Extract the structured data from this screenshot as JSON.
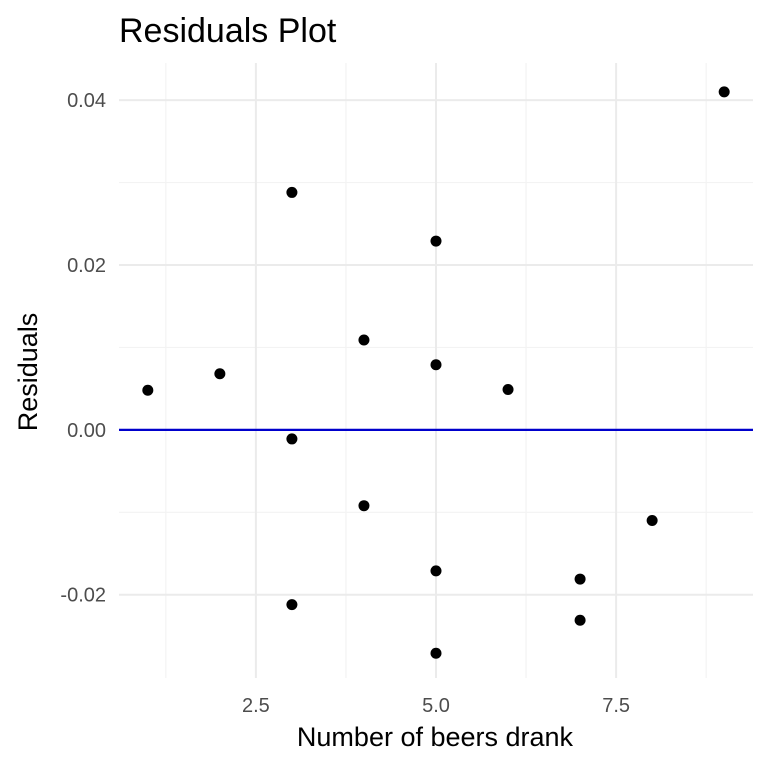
{
  "chart_data": {
    "type": "scatter",
    "title": "Residuals Plot",
    "xlabel": "Number of beers drank",
    "ylabel": "Residuals",
    "xlim": [
      0.6,
      9.4
    ],
    "ylim": [
      -0.0301,
      0.0445
    ],
    "x_ticks": [
      2.5,
      5.0,
      7.5
    ],
    "x_tick_labels": [
      "2.5",
      "5.0",
      "7.5"
    ],
    "y_ticks": [
      -0.02,
      0.0,
      0.02,
      0.04
    ],
    "y_tick_labels": [
      "-0.02",
      "0.00",
      "0.02",
      "0.04"
    ],
    "x_minor_ticks": [
      1.25,
      3.75,
      6.25,
      8.75
    ],
    "y_minor_ticks": [
      -0.01,
      0.01,
      0.03
    ],
    "grid": true,
    "reference_line": {
      "y": 0,
      "color": "#0000cc"
    },
    "point_color": "#000000",
    "points": [
      {
        "x": 1,
        "y": 0.0048
      },
      {
        "x": 2,
        "y": 0.0068
      },
      {
        "x": 3,
        "y": 0.0288
      },
      {
        "x": 3,
        "y": -0.0011
      },
      {
        "x": 3,
        "y": -0.0212
      },
      {
        "x": 4,
        "y": 0.0109
      },
      {
        "x": 4,
        "y": -0.0092
      },
      {
        "x": 5,
        "y": 0.0229
      },
      {
        "x": 5,
        "y": 0.0079
      },
      {
        "x": 5,
        "y": -0.0171
      },
      {
        "x": 5,
        "y": -0.0271
      },
      {
        "x": 6,
        "y": 0.0049
      },
      {
        "x": 7,
        "y": -0.0181
      },
      {
        "x": 7,
        "y": -0.0231
      },
      {
        "x": 8,
        "y": -0.011
      },
      {
        "x": 9,
        "y": 0.041
      }
    ]
  }
}
